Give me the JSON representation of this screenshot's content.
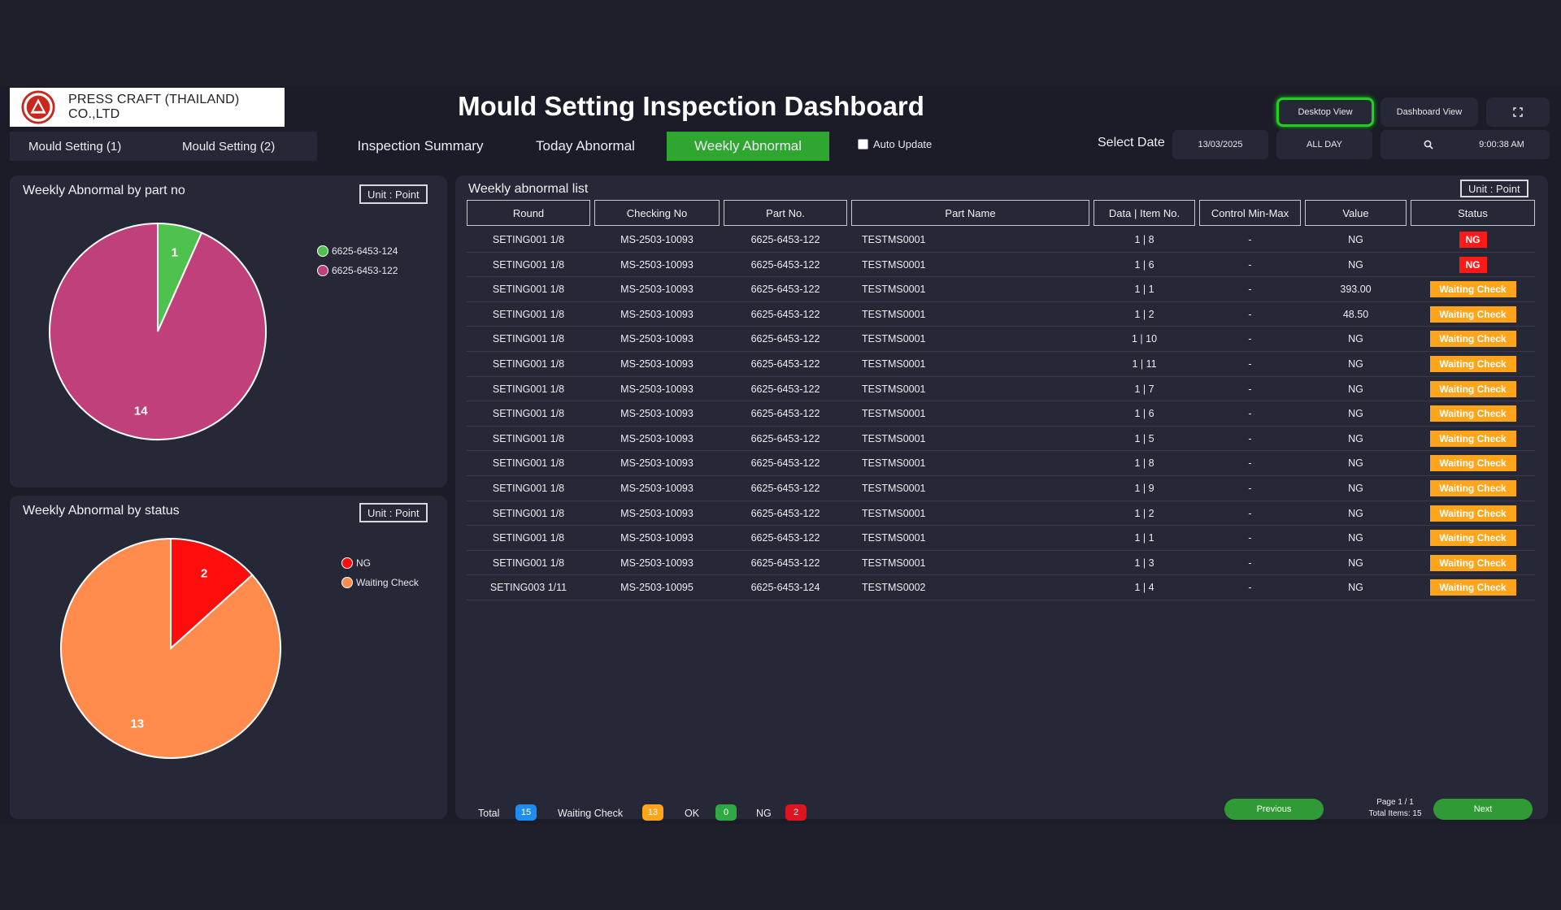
{
  "header": {
    "company": "PRESS CRAFT (THAILAND) CO.,LTD",
    "title": "Mould Setting Inspection Dashboard",
    "desktop_view": "Desktop View",
    "dashboard_view": "Dashboard View",
    "fullscreen_icon": "expand-icon"
  },
  "nav": {
    "mould1": "Mould  Setting (1)",
    "mould2": "Mould  Setting (2)",
    "tabs": [
      "Inspection Summary",
      "Today Abnormal",
      "Weekly Abnormal"
    ],
    "active_tab": "Weekly Abnormal",
    "auto_update": "Auto Update",
    "select_date_label": "Select Date",
    "date_value": "13/03/2025",
    "time_range": "ALL DAY",
    "search_icon": "search-icon",
    "clock": "9:00:38 AM"
  },
  "part_panel": {
    "title": "Weekly Abnormal by part no",
    "unit": "Unit : Point",
    "legend": [
      {
        "label": "6625-6453-124",
        "color": "#4fc14f"
      },
      {
        "label": "6625-6453-122",
        "color": "#c0407c"
      }
    ]
  },
  "status_panel": {
    "title": "Weekly Abnormal by status",
    "unit": "Unit : Point",
    "legend": [
      {
        "label": "NG",
        "color": "#ff0d0d"
      },
      {
        "label": "Waiting Check",
        "color": "#ff8c4d"
      }
    ]
  },
  "chart_data": [
    {
      "type": "pie",
      "categories": [
        "6625-6453-124",
        "6625-6453-122"
      ],
      "values": [
        1,
        14
      ],
      "colors": [
        "#4fc14f",
        "#c0407c"
      ],
      "legend": "right"
    },
    {
      "type": "pie",
      "categories": [
        "NG",
        "Waiting Check"
      ],
      "values": [
        2,
        13
      ],
      "colors": [
        "#ff0d0d",
        "#ff8c4d"
      ],
      "legend": "right"
    }
  ],
  "table": {
    "title": "Weekly abnormal list",
    "unit": "Unit : Point",
    "columns": [
      "Round",
      "Checking No",
      "Part No.",
      "Part Name",
      "Data | Item No.",
      "Control Min-Max",
      "Value",
      "Status"
    ],
    "rows": [
      {
        "round": "SETING001 1/8",
        "checking": "MS-2503-10093",
        "part_no": "6625-6453-122",
        "part_name": "TESTMS0001",
        "item": "1 | 8",
        "control": "-",
        "value": "NG",
        "status": "NG"
      },
      {
        "round": "SETING001 1/8",
        "checking": "MS-2503-10093",
        "part_no": "6625-6453-122",
        "part_name": "TESTMS0001",
        "item": "1 | 6",
        "control": "-",
        "value": "NG",
        "status": "NG"
      },
      {
        "round": "SETING001 1/8",
        "checking": "MS-2503-10093",
        "part_no": "6625-6453-122",
        "part_name": "TESTMS0001",
        "item": "1 | 1",
        "control": "-",
        "value": "393.00",
        "status": "Waiting Check"
      },
      {
        "round": "SETING001 1/8",
        "checking": "MS-2503-10093",
        "part_no": "6625-6453-122",
        "part_name": "TESTMS0001",
        "item": "1 | 2",
        "control": "-",
        "value": "48.50",
        "status": "Waiting Check"
      },
      {
        "round": "SETING001 1/8",
        "checking": "MS-2503-10093",
        "part_no": "6625-6453-122",
        "part_name": "TESTMS0001",
        "item": "1 | 10",
        "control": "-",
        "value": "NG",
        "status": "Waiting Check"
      },
      {
        "round": "SETING001 1/8",
        "checking": "MS-2503-10093",
        "part_no": "6625-6453-122",
        "part_name": "TESTMS0001",
        "item": "1 | 11",
        "control": "-",
        "value": "NG",
        "status": "Waiting Check"
      },
      {
        "round": "SETING001 1/8",
        "checking": "MS-2503-10093",
        "part_no": "6625-6453-122",
        "part_name": "TESTMS0001",
        "item": "1 | 7",
        "control": "-",
        "value": "NG",
        "status": "Waiting Check"
      },
      {
        "round": "SETING001 1/8",
        "checking": "MS-2503-10093",
        "part_no": "6625-6453-122",
        "part_name": "TESTMS0001",
        "item": "1 | 6",
        "control": "-",
        "value": "NG",
        "status": "Waiting Check"
      },
      {
        "round": "SETING001 1/8",
        "checking": "MS-2503-10093",
        "part_no": "6625-6453-122",
        "part_name": "TESTMS0001",
        "item": "1 | 5",
        "control": "-",
        "value": "NG",
        "status": "Waiting Check"
      },
      {
        "round": "SETING001 1/8",
        "checking": "MS-2503-10093",
        "part_no": "6625-6453-122",
        "part_name": "TESTMS0001",
        "item": "1 | 8",
        "control": "-",
        "value": "NG",
        "status": "Waiting Check"
      },
      {
        "round": "SETING001 1/8",
        "checking": "MS-2503-10093",
        "part_no": "6625-6453-122",
        "part_name": "TESTMS0001",
        "item": "1 | 9",
        "control": "-",
        "value": "NG",
        "status": "Waiting Check"
      },
      {
        "round": "SETING001 1/8",
        "checking": "MS-2503-10093",
        "part_no": "6625-6453-122",
        "part_name": "TESTMS0001",
        "item": "1 | 2",
        "control": "-",
        "value": "NG",
        "status": "Waiting Check"
      },
      {
        "round": "SETING001 1/8",
        "checking": "MS-2503-10093",
        "part_no": "6625-6453-122",
        "part_name": "TESTMS0001",
        "item": "1 | 1",
        "control": "-",
        "value": "NG",
        "status": "Waiting Check"
      },
      {
        "round": "SETING001 1/8",
        "checking": "MS-2503-10093",
        "part_no": "6625-6453-122",
        "part_name": "TESTMS0001",
        "item": "1 | 3",
        "control": "-",
        "value": "NG",
        "status": "Waiting Check"
      },
      {
        "round": "SETING003 1/11",
        "checking": "MS-2503-10095",
        "part_no": "6625-6453-124",
        "part_name": "TESTMS0002",
        "item": "1 | 4",
        "control": "-",
        "value": "NG",
        "status": "Waiting Check"
      }
    ]
  },
  "summary": {
    "total_label": "Total",
    "total": "15",
    "waiting_label": "Waiting Check",
    "waiting": "13",
    "ok_label": "OK",
    "ok": "0",
    "ng_label": "NG",
    "ng": "2"
  },
  "pagination": {
    "previous": "Previous",
    "page": "Page 1 / 1",
    "total_items": "Total Items: 15",
    "next": "Next"
  }
}
